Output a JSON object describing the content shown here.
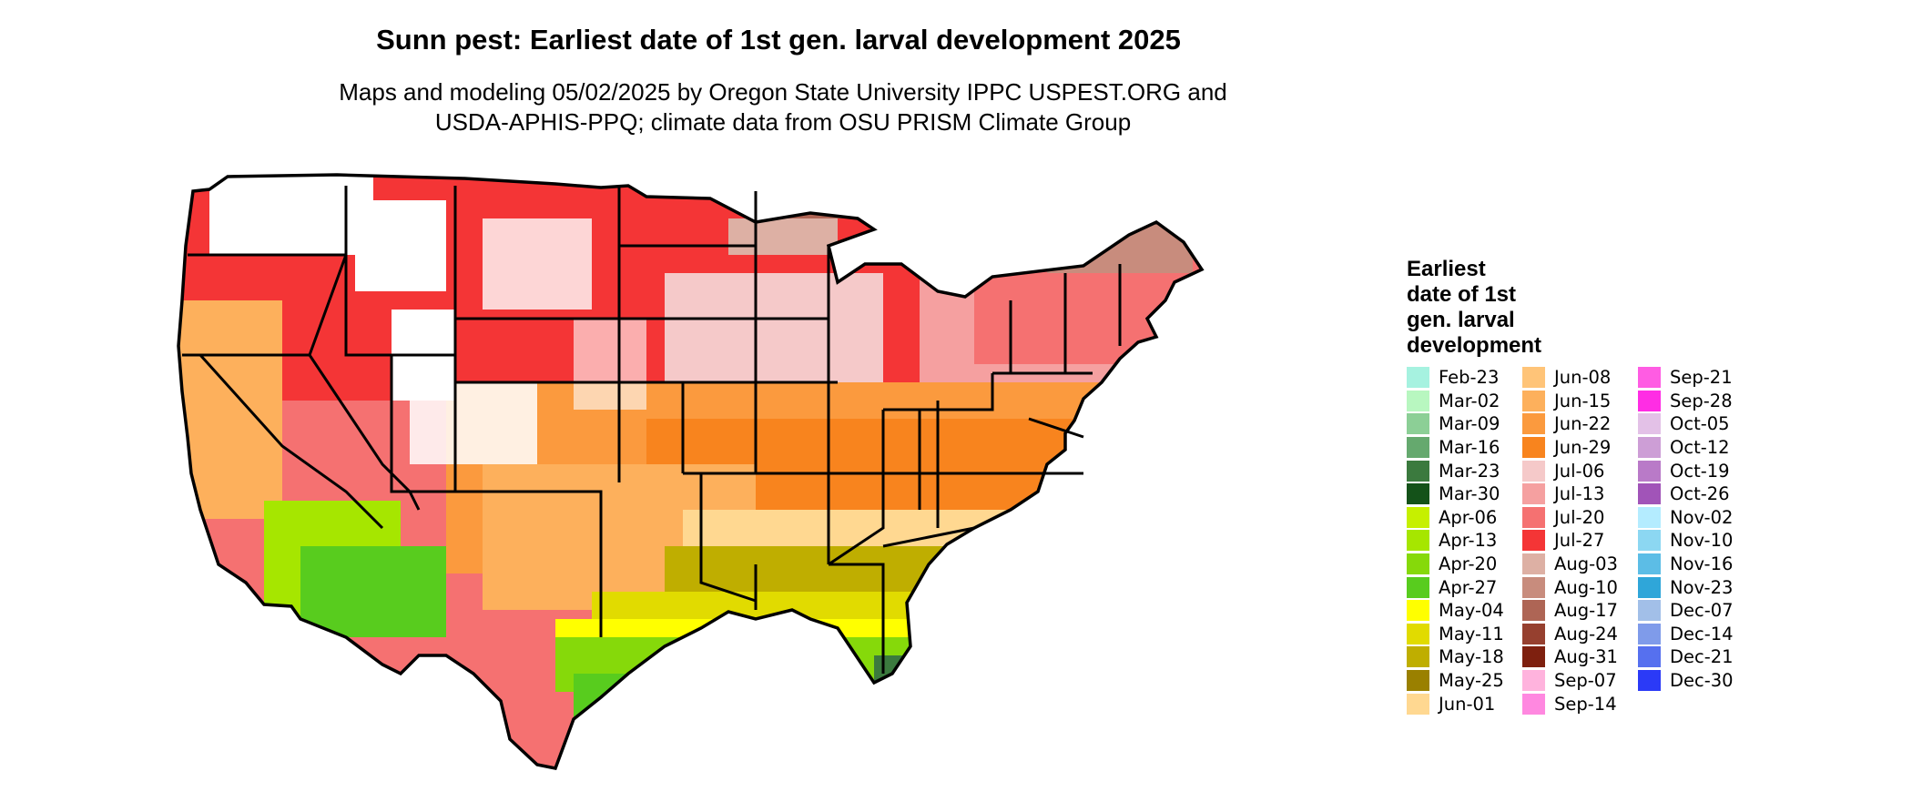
{
  "title": "Sunn pest: Earliest date of 1st gen. larval development 2025",
  "subtitle_lines": [
    "Maps and modeling 05/02/2025 by Oregon State University IPPC USPEST.ORG and",
    "USDA-APHIS-PPQ; climate data from OSU PRISM Climate Group"
  ],
  "legend": {
    "title_lines": [
      "Earliest",
      "date of 1st",
      "gen. larval",
      "development"
    ],
    "columns": [
      [
        {
          "label": "Feb-23",
          "color": "#a6f2e0"
        },
        {
          "label": "Mar-02",
          "color": "#b8f7c0"
        },
        {
          "label": "Mar-09",
          "color": "#8ccf96"
        },
        {
          "label": "Mar-16",
          "color": "#65a96e"
        },
        {
          "label": "Mar-23",
          "color": "#3b7a3e"
        },
        {
          "label": "Mar-30",
          "color": "#145219"
        },
        {
          "label": "Apr-06",
          "color": "#c6f000"
        },
        {
          "label": "Apr-13",
          "color": "#a6e600"
        },
        {
          "label": "Apr-20",
          "color": "#86d90a"
        },
        {
          "label": "Apr-27",
          "color": "#58cc1e"
        },
        {
          "label": "May-04",
          "color": "#ffff00"
        },
        {
          "label": "May-11",
          "color": "#e1db00"
        },
        {
          "label": "May-18",
          "color": "#bfae00"
        },
        {
          "label": "May-25",
          "color": "#9a8000"
        },
        {
          "label": "Jun-01",
          "color": "#ffd891"
        }
      ],
      [
        {
          "label": "Jun-08",
          "color": "#ffc478"
        },
        {
          "label": "Jun-15",
          "color": "#fdb05c"
        },
        {
          "label": "Jun-22",
          "color": "#fb9a3e"
        },
        {
          "label": "Jun-29",
          "color": "#f8841e"
        },
        {
          "label": "Jul-06",
          "color": "#f5c9c9"
        },
        {
          "label": "Jul-13",
          "color": "#f5a0a0"
        },
        {
          "label": "Jul-20",
          "color": "#f57171"
        },
        {
          "label": "Jul-27",
          "color": "#f43536"
        },
        {
          "label": "Aug-03",
          "color": "#ddb0a4"
        },
        {
          "label": "Aug-10",
          "color": "#c88c7d"
        },
        {
          "label": "Aug-17",
          "color": "#ae6555"
        },
        {
          "label": "Aug-24",
          "color": "#96402f"
        },
        {
          "label": "Aug-31",
          "color": "#7e200f"
        },
        {
          "label": "Sep-07",
          "color": "#ffb3dd"
        },
        {
          "label": "Sep-14",
          "color": "#ff88e0"
        }
      ],
      [
        {
          "label": "Sep-21",
          "color": "#ff5ce3"
        },
        {
          "label": "Sep-28",
          "color": "#ff2de4"
        },
        {
          "label": "Oct-05",
          "color": "#e3c1e7"
        },
        {
          "label": "Oct-12",
          "color": "#cd9ed6"
        },
        {
          "label": "Oct-19",
          "color": "#b97ac8"
        },
        {
          "label": "Oct-26",
          "color": "#a154b8"
        },
        {
          "label": "Nov-02",
          "color": "#b4ecff"
        },
        {
          "label": "Nov-10",
          "color": "#8cd7f2"
        },
        {
          "label": "Nov-16",
          "color": "#5cbde6"
        },
        {
          "label": "Nov-23",
          "color": "#2fa6d9"
        },
        {
          "label": "Dec-07",
          "color": "#a2bfe8"
        },
        {
          "label": "Dec-14",
          "color": "#7f9bea"
        },
        {
          "label": "Dec-21",
          "color": "#5670ef"
        },
        {
          "label": "Dec-30",
          "color": "#2b3af7"
        }
      ]
    ]
  }
}
